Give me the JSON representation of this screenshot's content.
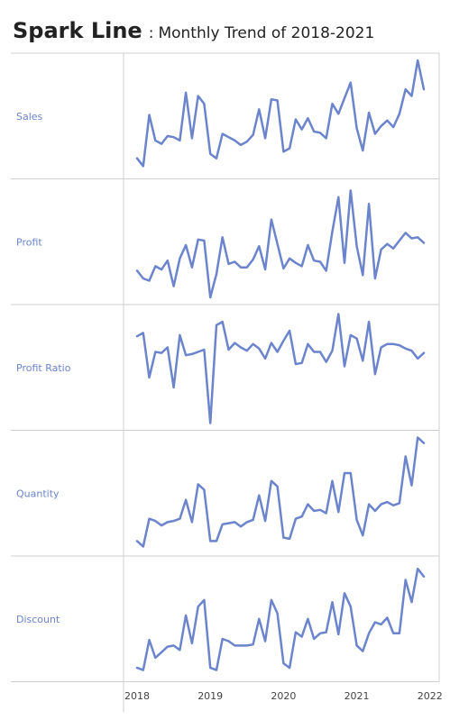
{
  "header": {
    "title": "Spark Line",
    "separator": ":",
    "subtitle": "Monthly Trend of 2018-2021"
  },
  "line_color": "#6b84cc",
  "grid_color": "#cfcfcf",
  "label_color": "#6b84cc",
  "chart_data": {
    "type": "line",
    "title": "Spark Line",
    "subtitle": "Monthly Trend of 2018-2021",
    "x_axis": {
      "type": "date",
      "start": "2018-01",
      "tick_labels": [
        "2018",
        "2019",
        "2020",
        "2021",
        "2022"
      ]
    },
    "x": [
      "2018-01",
      "2018-02",
      "2018-03",
      "2018-04",
      "2018-05",
      "2018-06",
      "2018-07",
      "2018-08",
      "2018-09",
      "2018-10",
      "2018-11",
      "2018-12",
      "2019-01",
      "2019-02",
      "2019-03",
      "2019-04",
      "2019-05",
      "2019-06",
      "2019-07",
      "2019-08",
      "2019-09",
      "2019-10",
      "2019-11",
      "2019-12",
      "2020-01",
      "2020-02",
      "2020-03",
      "2020-04",
      "2020-05",
      "2020-06",
      "2020-07",
      "2020-08",
      "2020-09",
      "2020-10",
      "2020-11",
      "2020-12",
      "2021-01",
      "2021-02",
      "2021-03",
      "2021-04",
      "2021-05",
      "2021-06",
      "2021-07",
      "2021-08",
      "2021-09",
      "2021-10",
      "2021-11",
      "2021-12"
    ],
    "grid": true,
    "legend": "none",
    "series": [
      {
        "name": "Sales",
        "values": [
          0.12,
          0.05,
          0.51,
          0.28,
          0.25,
          0.32,
          0.31,
          0.28,
          0.71,
          0.3,
          0.68,
          0.61,
          0.16,
          0.12,
          0.34,
          0.31,
          0.28,
          0.24,
          0.27,
          0.33,
          0.56,
          0.3,
          0.65,
          0.64,
          0.18,
          0.21,
          0.47,
          0.38,
          0.48,
          0.36,
          0.35,
          0.3,
          0.61,
          0.52,
          0.66,
          0.8,
          0.39,
          0.19,
          0.53,
          0.34,
          0.41,
          0.46,
          0.4,
          0.52,
          0.74,
          0.68,
          1.0,
          0.74
        ]
      },
      {
        "name": "Profit",
        "values": [
          0.24,
          0.17,
          0.15,
          0.28,
          0.25,
          0.33,
          0.1,
          0.35,
          0.47,
          0.27,
          0.52,
          0.51,
          0.0,
          0.21,
          0.54,
          0.3,
          0.32,
          0.27,
          0.27,
          0.34,
          0.46,
          0.25,
          0.7,
          0.48,
          0.26,
          0.35,
          0.31,
          0.28,
          0.47,
          0.33,
          0.32,
          0.24,
          0.59,
          0.9,
          0.31,
          0.96,
          0.46,
          0.2,
          0.84,
          0.17,
          0.43,
          0.48,
          0.44,
          0.51,
          0.58,
          0.53,
          0.54,
          0.49
        ]
      },
      {
        "name": "Profit Ratio",
        "values": [
          0.78,
          0.81,
          0.41,
          0.64,
          0.63,
          0.68,
          0.32,
          0.79,
          0.61,
          0.62,
          0.64,
          0.66,
          0.0,
          0.88,
          0.91,
          0.66,
          0.72,
          0.68,
          0.65,
          0.71,
          0.67,
          0.58,
          0.72,
          0.64,
          0.74,
          0.83,
          0.53,
          0.54,
          0.71,
          0.64,
          0.64,
          0.55,
          0.65,
          0.98,
          0.51,
          0.79,
          0.76,
          0.56,
          0.91,
          0.44,
          0.68,
          0.71,
          0.71,
          0.7,
          0.67,
          0.65,
          0.58,
          0.63
        ]
      },
      {
        "name": "Quantity",
        "values": [
          0.07,
          0.02,
          0.27,
          0.25,
          0.21,
          0.24,
          0.25,
          0.27,
          0.44,
          0.24,
          0.58,
          0.53,
          0.07,
          0.07,
          0.22,
          0.23,
          0.24,
          0.2,
          0.24,
          0.26,
          0.48,
          0.25,
          0.61,
          0.56,
          0.1,
          0.09,
          0.27,
          0.29,
          0.4,
          0.34,
          0.35,
          0.32,
          0.61,
          0.33,
          0.68,
          0.68,
          0.26,
          0.12,
          0.4,
          0.34,
          0.4,
          0.42,
          0.39,
          0.41,
          0.83,
          0.57,
          1.0,
          0.95
        ]
      },
      {
        "name": "Discount",
        "values": [
          0.06,
          0.04,
          0.31,
          0.15,
          0.2,
          0.25,
          0.26,
          0.22,
          0.53,
          0.28,
          0.61,
          0.67,
          0.06,
          0.04,
          0.32,
          0.3,
          0.26,
          0.26,
          0.26,
          0.27,
          0.5,
          0.3,
          0.67,
          0.55,
          0.1,
          0.06,
          0.38,
          0.34,
          0.5,
          0.32,
          0.37,
          0.38,
          0.65,
          0.36,
          0.73,
          0.61,
          0.26,
          0.21,
          0.37,
          0.47,
          0.45,
          0.51,
          0.37,
          0.37,
          0.85,
          0.65,
          0.95,
          0.88
        ]
      }
    ]
  }
}
